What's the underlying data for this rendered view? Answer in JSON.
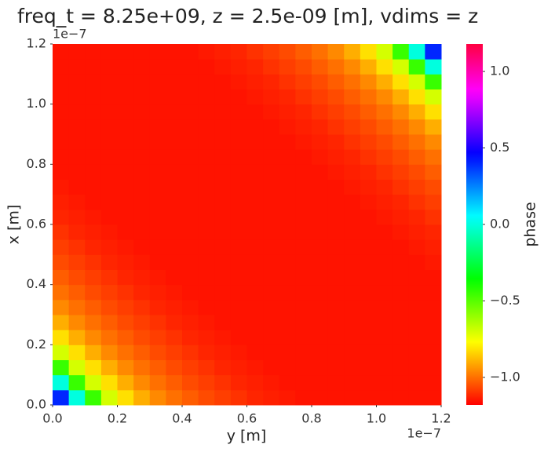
{
  "chart_data": {
    "type": "heatmap",
    "title": "freq_t = 8.25e+09, z = 2.5e-09 [m], vdims = z",
    "x_label": "y [m]",
    "y_label": "x [m]",
    "colorbar_label": "phase",
    "x_offset_text": "1e−7",
    "y_offset_text": "1e−7",
    "xlim": [
      0,
      1.2e-07
    ],
    "ylim": [
      0,
      1.2e-07
    ],
    "xticks": [
      {
        "value": 0,
        "label": "0.0"
      },
      {
        "value": 2e-08,
        "label": "0.2"
      },
      {
        "value": 4e-08,
        "label": "0.4"
      },
      {
        "value": 6e-08,
        "label": "0.6"
      },
      {
        "value": 8e-08,
        "label": "0.8"
      },
      {
        "value": 1e-07,
        "label": "1.0"
      },
      {
        "value": 1.2e-07,
        "label": "1.2"
      }
    ],
    "yticks": [
      {
        "value": 0,
        "label": "0.0"
      },
      {
        "value": 2e-08,
        "label": "0.2"
      },
      {
        "value": 4e-08,
        "label": "0.4"
      },
      {
        "value": 6e-08,
        "label": "0.6"
      },
      {
        "value": 8e-08,
        "label": "0.8"
      },
      {
        "value": 1e-07,
        "label": "1.0"
      },
      {
        "value": 1.2e-07,
        "label": "1.2"
      }
    ],
    "colormap": "hsv",
    "clim": [
      -1.18,
      1.18
    ],
    "colorbar_ticks": [
      {
        "value": -1,
        "label": "−1.0"
      },
      {
        "value": -0.5,
        "label": "−0.5"
      },
      {
        "value": 0,
        "label": "0.0"
      },
      {
        "value": 0.5,
        "label": "0.5"
      },
      {
        "value": 1,
        "label": "1.0"
      }
    ],
    "values": [
      [
        0.4,
        0,
        -0.45,
        -0.7,
        -0.82,
        -0.9,
        -0.96,
        -1,
        -1.03,
        -1.06,
        -1.08,
        -1.1,
        -1.12,
        -1.13,
        -1.14,
        -1.15,
        -1.15,
        -1.15,
        -1.15,
        -1.15,
        -1.15,
        -1.15,
        -1.15,
        -1.15
      ],
      [
        0,
        -0.45,
        -0.7,
        -0.82,
        -0.9,
        -0.96,
        -1,
        -1.03,
        -1.06,
        -1.08,
        -1.1,
        -1.12,
        -1.13,
        -1.14,
        -1.15,
        -1.15,
        -1.15,
        -1.15,
        -1.15,
        -1.15,
        -1.15,
        -1.15,
        -1.15,
        -1.15
      ],
      [
        -0.45,
        -0.7,
        -0.82,
        -0.9,
        -0.96,
        -1,
        -1.03,
        -1.06,
        -1.08,
        -1.1,
        -1.12,
        -1.13,
        -1.14,
        -1.15,
        -1.15,
        -1.15,
        -1.15,
        -1.15,
        -1.15,
        -1.15,
        -1.15,
        -1.15,
        -1.15,
        -1.15
      ],
      [
        -0.7,
        -0.82,
        -0.9,
        -0.96,
        -1,
        -1.03,
        -1.06,
        -1.08,
        -1.1,
        -1.12,
        -1.13,
        -1.14,
        -1.15,
        -1.15,
        -1.15,
        -1.15,
        -1.15,
        -1.15,
        -1.15,
        -1.15,
        -1.15,
        -1.15,
        -1.15,
        -1.15
      ],
      [
        -0.82,
        -0.9,
        -0.96,
        -1,
        -1.03,
        -1.06,
        -1.08,
        -1.1,
        -1.12,
        -1.13,
        -1.14,
        -1.15,
        -1.15,
        -1.15,
        -1.15,
        -1.15,
        -1.15,
        -1.15,
        -1.15,
        -1.15,
        -1.15,
        -1.15,
        -1.15,
        -1.15
      ],
      [
        -0.9,
        -0.96,
        -1,
        -1.03,
        -1.06,
        -1.08,
        -1.1,
        -1.12,
        -1.13,
        -1.14,
        -1.15,
        -1.15,
        -1.15,
        -1.15,
        -1.15,
        -1.15,
        -1.15,
        -1.15,
        -1.15,
        -1.15,
        -1.15,
        -1.15,
        -1.15,
        -1.15
      ],
      [
        -0.96,
        -1,
        -1.03,
        -1.06,
        -1.08,
        -1.1,
        -1.12,
        -1.13,
        -1.14,
        -1.15,
        -1.15,
        -1.15,
        -1.15,
        -1.15,
        -1.15,
        -1.15,
        -1.15,
        -1.15,
        -1.15,
        -1.15,
        -1.15,
        -1.15,
        -1.15,
        -1.15
      ],
      [
        -1,
        -1.03,
        -1.06,
        -1.08,
        -1.1,
        -1.12,
        -1.13,
        -1.14,
        -1.15,
        -1.15,
        -1.15,
        -1.15,
        -1.15,
        -1.15,
        -1.15,
        -1.15,
        -1.15,
        -1.15,
        -1.15,
        -1.15,
        -1.15,
        -1.15,
        -1.15,
        -1.15
      ],
      [
        -1.03,
        -1.06,
        -1.08,
        -1.1,
        -1.12,
        -1.13,
        -1.14,
        -1.15,
        -1.15,
        -1.15,
        -1.15,
        -1.15,
        -1.15,
        -1.15,
        -1.15,
        -1.15,
        -1.15,
        -1.15,
        -1.15,
        -1.15,
        -1.15,
        -1.15,
        -1.15,
        -1.15
      ],
      [
        -1.06,
        -1.08,
        -1.1,
        -1.12,
        -1.13,
        -1.14,
        -1.15,
        -1.15,
        -1.15,
        -1.15,
        -1.15,
        -1.15,
        -1.15,
        -1.15,
        -1.15,
        -1.15,
        -1.15,
        -1.15,
        -1.15,
        -1.15,
        -1.15,
        -1.15,
        -1.15,
        -1.14
      ],
      [
        -1.08,
        -1.1,
        -1.12,
        -1.13,
        -1.14,
        -1.15,
        -1.15,
        -1.15,
        -1.15,
        -1.15,
        -1.15,
        -1.15,
        -1.15,
        -1.15,
        -1.15,
        -1.15,
        -1.15,
        -1.15,
        -1.15,
        -1.15,
        -1.15,
        -1.15,
        -1.14,
        -1.13
      ],
      [
        -1.1,
        -1.12,
        -1.13,
        -1.14,
        -1.15,
        -1.15,
        -1.15,
        -1.15,
        -1.15,
        -1.15,
        -1.15,
        -1.15,
        -1.15,
        -1.15,
        -1.15,
        -1.15,
        -1.15,
        -1.15,
        -1.15,
        -1.15,
        -1.15,
        -1.14,
        -1.13,
        -1.12
      ],
      [
        -1.12,
        -1.13,
        -1.14,
        -1.15,
        -1.15,
        -1.15,
        -1.15,
        -1.15,
        -1.15,
        -1.15,
        -1.15,
        -1.15,
        -1.15,
        -1.15,
        -1.15,
        -1.15,
        -1.15,
        -1.15,
        -1.15,
        -1.15,
        -1.14,
        -1.13,
        -1.12,
        -1.1
      ],
      [
        -1.13,
        -1.14,
        -1.15,
        -1.15,
        -1.15,
        -1.15,
        -1.15,
        -1.15,
        -1.15,
        -1.15,
        -1.15,
        -1.15,
        -1.15,
        -1.15,
        -1.15,
        -1.15,
        -1.15,
        -1.15,
        -1.15,
        -1.14,
        -1.13,
        -1.12,
        -1.1,
        -1.08
      ],
      [
        -1.14,
        -1.15,
        -1.15,
        -1.15,
        -1.15,
        -1.15,
        -1.15,
        -1.15,
        -1.15,
        -1.15,
        -1.15,
        -1.15,
        -1.15,
        -1.15,
        -1.15,
        -1.15,
        -1.15,
        -1.15,
        -1.14,
        -1.13,
        -1.12,
        -1.1,
        -1.08,
        -1.06
      ],
      [
        -1.15,
        -1.15,
        -1.15,
        -1.15,
        -1.15,
        -1.15,
        -1.15,
        -1.15,
        -1.15,
        -1.15,
        -1.15,
        -1.15,
        -1.15,
        -1.15,
        -1.15,
        -1.15,
        -1.15,
        -1.14,
        -1.13,
        -1.12,
        -1.1,
        -1.08,
        -1.06,
        -1.03
      ],
      [
        -1.15,
        -1.15,
        -1.15,
        -1.15,
        -1.15,
        -1.15,
        -1.15,
        -1.15,
        -1.15,
        -1.15,
        -1.15,
        -1.15,
        -1.15,
        -1.15,
        -1.15,
        -1.15,
        -1.14,
        -1.13,
        -1.12,
        -1.1,
        -1.08,
        -1.06,
        -1.03,
        -1
      ],
      [
        -1.15,
        -1.15,
        -1.15,
        -1.15,
        -1.15,
        -1.15,
        -1.15,
        -1.15,
        -1.15,
        -1.15,
        -1.15,
        -1.15,
        -1.15,
        -1.15,
        -1.15,
        -1.14,
        -1.13,
        -1.12,
        -1.1,
        -1.08,
        -1.06,
        -1.03,
        -1,
        -0.96
      ],
      [
        -1.15,
        -1.15,
        -1.15,
        -1.15,
        -1.15,
        -1.15,
        -1.15,
        -1.15,
        -1.15,
        -1.15,
        -1.15,
        -1.15,
        -1.15,
        -1.15,
        -1.14,
        -1.13,
        -1.12,
        -1.1,
        -1.08,
        -1.06,
        -1.03,
        -1,
        -0.96,
        -0.9
      ],
      [
        -1.15,
        -1.15,
        -1.15,
        -1.15,
        -1.15,
        -1.15,
        -1.15,
        -1.15,
        -1.15,
        -1.15,
        -1.15,
        -1.15,
        -1.15,
        -1.14,
        -1.13,
        -1.12,
        -1.1,
        -1.08,
        -1.06,
        -1.03,
        -1,
        -0.96,
        -0.9,
        -0.82
      ],
      [
        -1.15,
        -1.15,
        -1.15,
        -1.15,
        -1.15,
        -1.15,
        -1.15,
        -1.15,
        -1.15,
        -1.15,
        -1.15,
        -1.15,
        -1.14,
        -1.13,
        -1.12,
        -1.1,
        -1.08,
        -1.06,
        -1.03,
        -1,
        -0.96,
        -0.9,
        -0.82,
        -0.7
      ],
      [
        -1.15,
        -1.15,
        -1.15,
        -1.15,
        -1.15,
        -1.15,
        -1.15,
        -1.15,
        -1.15,
        -1.15,
        -1.15,
        -1.14,
        -1.13,
        -1.12,
        -1.1,
        -1.08,
        -1.06,
        -1.03,
        -1,
        -0.96,
        -0.9,
        -0.82,
        -0.7,
        -0.45
      ],
      [
        -1.15,
        -1.15,
        -1.15,
        -1.15,
        -1.15,
        -1.15,
        -1.15,
        -1.15,
        -1.15,
        -1.15,
        -1.14,
        -1.13,
        -1.12,
        -1.1,
        -1.08,
        -1.06,
        -1.03,
        -1,
        -0.96,
        -0.9,
        -0.82,
        -0.7,
        -0.45,
        0
      ],
      [
        -1.15,
        -1.15,
        -1.15,
        -1.15,
        -1.15,
        -1.15,
        -1.15,
        -1.15,
        -1.15,
        -1.14,
        -1.13,
        -1.12,
        -1.1,
        -1.08,
        -1.06,
        -1.03,
        -1,
        -0.96,
        -0.9,
        -0.82,
        -0.7,
        -0.45,
        0,
        0.4
      ]
    ]
  }
}
